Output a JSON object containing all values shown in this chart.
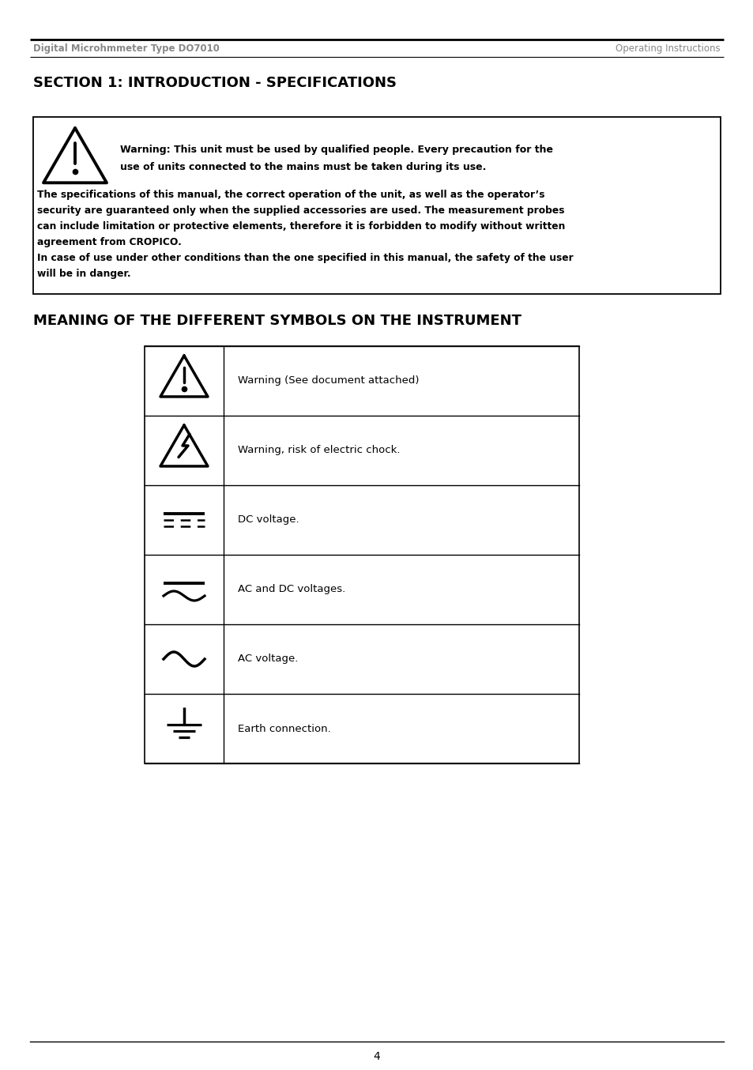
{
  "page_title_left": "Digital Microhmmeter Type DO7010",
  "page_title_right": "Operating Instructions",
  "section_title": "SECTION 1: INTRODUCTION - SPECIFICATIONS",
  "warn_bold_lines": [
    "Warning: This unit must be used by qualified people. Every precaution for the",
    "use of units connected to the mains must be taken during its use."
  ],
  "warn_body_lines": [
    "The specifications of this manual, the correct operation of the unit, as well as the operator’s",
    "security are guaranteed only when the supplied accessories are used. The measurement probes",
    "can include limitation or protective elements, therefore it is forbidden to modify without written",
    "agreement from CROPICO.",
    "In case of use under other conditions than the one specified in this manual, the safety of the user",
    "will be in danger."
  ],
  "symbols_title": "MEANING OF THE DIFFERENT SYMBOLS ON THE INSTRUMENT",
  "symbol_labels": [
    "Warning (See document attached)",
    "Warning, risk of electric chock.",
    "DC voltage.",
    "AC and DC voltages.",
    "AC voltage.",
    "Earth connection."
  ],
  "page_number": "4",
  "bg_color": "#ffffff",
  "text_color": "#000000",
  "header_color": "#888888"
}
